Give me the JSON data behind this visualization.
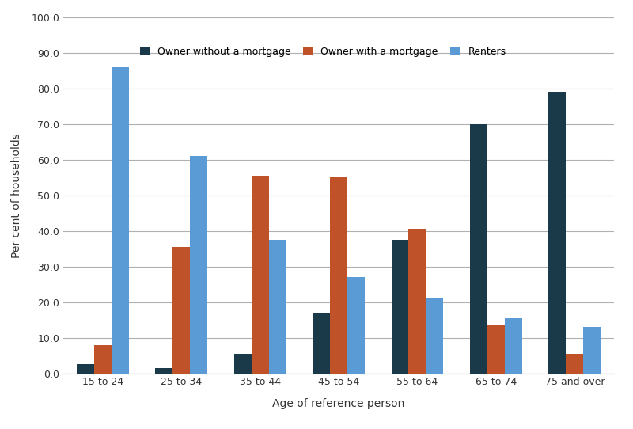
{
  "categories": [
    "15 to 24",
    "25 to 34",
    "35 to 44",
    "45 to 54",
    "55 to 64",
    "65 to 74",
    "75 and over"
  ],
  "series": {
    "Owner without a mortgage": [
      2.5,
      1.5,
      5.5,
      17.0,
      37.5,
      70.0,
      79.0
    ],
    "Owner with a mortgage": [
      8.0,
      35.5,
      55.5,
      55.0,
      40.5,
      13.5,
      5.5
    ],
    "Renters": [
      86.0,
      61.0,
      37.5,
      27.0,
      21.0,
      15.5,
      13.0
    ]
  },
  "colors": {
    "Owner without a mortgage": "#1a3a4a",
    "Owner with a mortgage": "#c0522a",
    "Renters": "#5b9bd5"
  },
  "legend_order": [
    "Owner without a mortgage",
    "Owner with a mortgage",
    "Renters"
  ],
  "xlabel": "Age of reference person",
  "ylabel": "Per cent of households",
  "ylim": [
    0,
    100
  ],
  "yticks": [
    0.0,
    10.0,
    20.0,
    30.0,
    40.0,
    50.0,
    60.0,
    70.0,
    80.0,
    90.0,
    100.0
  ],
  "background_color": "#ffffff",
  "grid_color": "#b0b0b0",
  "bar_width": 0.22
}
